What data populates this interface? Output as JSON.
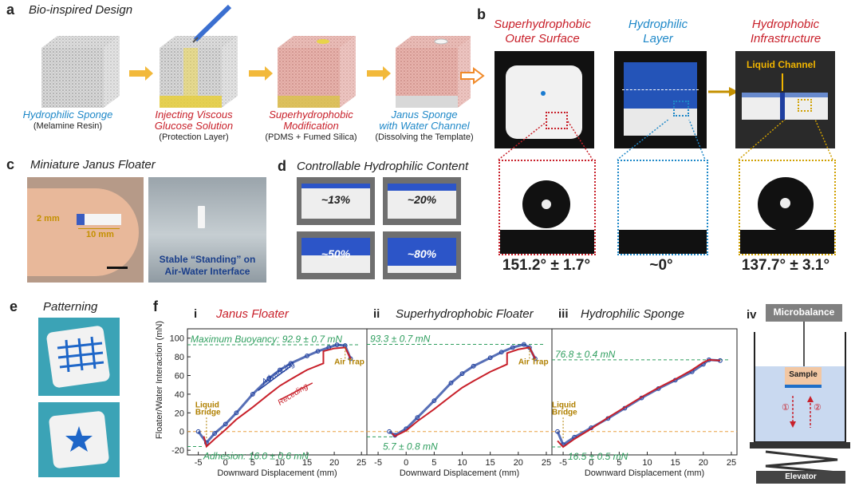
{
  "panel_a": {
    "label": "a",
    "title": "Bio-inspired Design",
    "steps": [
      {
        "title": "Hydrophilic Sponge",
        "sub": "(Melamine Resin)",
        "color": "#1e88c8"
      },
      {
        "title": "Injecting Viscous Glucose Solution",
        "sub": "(Protection Layer)",
        "color": "#c8202a"
      },
      {
        "title": "Superhydrophobic Modification",
        "sub": "(PDMS + Fumed Silica)",
        "color": "#c8202a"
      },
      {
        "title": "Janus Sponge with Water Channel",
        "sub": "(Dissolving the Template)",
        "color": "#1e88c8"
      }
    ],
    "step_titles_split": [
      [
        "Hydrophilic Sponge"
      ],
      [
        "Injecting Viscous",
        "Glucose Solution"
      ],
      [
        "Superhydrophobic",
        "Modification"
      ],
      [
        "Janus Sponge",
        "with Water Channel"
      ]
    ]
  },
  "panel_b": {
    "label": "b",
    "columns": [
      {
        "title1": "Superhydrophobic",
        "title2": "Outer Surface",
        "color": "#c8202a",
        "angle": "151.2° ± 1.7°"
      },
      {
        "title1": "Hydrophilic",
        "title2": "Layer",
        "color": "#1e88c8",
        "angle": "~0°"
      },
      {
        "title1": "Hydrophobic",
        "title2": "Infrastructure",
        "color": "#c8202a",
        "angle": "137.7° ± 3.1°"
      }
    ],
    "channel_label": "Liquid Channel"
  },
  "panel_c": {
    "label": "c",
    "title": "Miniature Janus Floater",
    "dim_height": "2 mm",
    "dim_length": "10 mm",
    "caption_line1": "Stable “Standing” on",
    "caption_line2": "Air-Water Interface"
  },
  "panel_d": {
    "label": "d",
    "title": "Controllable Hydrophilic Content",
    "samples": [
      "~13%",
      "~20%",
      "~50%",
      "~80%"
    ],
    "blue_fraction": [
      0.13,
      0.2,
      0.5,
      0.8
    ]
  },
  "panel_e": {
    "label": "e",
    "title": "Patterning"
  },
  "panel_f": {
    "label": "f",
    "ylabel": "Floater/Water Interaction (mN)",
    "xlabel": "Downward Displacement (mm)",
    "yticks": [
      "100",
      "80",
      "60",
      "40",
      "20",
      "0",
      "-20"
    ],
    "xticks": [
      "-5",
      "0",
      "5",
      "10",
      "15",
      "20",
      "25"
    ],
    "subplots": [
      {
        "roman": "i",
        "title": "Janus Floater",
        "title_color": "#c8202a",
        "max_label": "Maximum Buoyancy: 92.9 ± 0.7 mN",
        "min_label": "Adhesion: 16.0 ± 0.6 mN",
        "advancing": "Advancing",
        "receding": "Receding",
        "air_trap": "Air Trap",
        "liquid_bridge_1": "Liquid",
        "liquid_bridge_2": "Bridge"
      },
      {
        "roman": "ii",
        "title": "Superhydrophobic Floater",
        "title_color": "#222222",
        "max_label": "93.3 ± 0.7 mN",
        "min_label": "5.7 ± 0.8 mN",
        "air_trap": "Air Trap"
      },
      {
        "roman": "iii",
        "title": "Hydrophilic Sponge",
        "title_color": "#222222",
        "max_label": "76.8 ± 0.4 mN",
        "min_label": "16.5 ± 0.5 mN",
        "liquid_bridge_1": "Liquid",
        "liquid_bridge_2": "Bridge"
      }
    ],
    "apparatus": {
      "roman": "iv",
      "top": "Microbalance",
      "sample": "Sample",
      "bottom": "Elevator",
      "step1": "①",
      "step2": "②"
    }
  },
  "chart_data": [
    {
      "type": "line",
      "title": "Janus Floater",
      "xlabel": "Downward Displacement (mm)",
      "ylabel": "Floater/Water Interaction (mN)",
      "xlim": [
        -7,
        26
      ],
      "ylim": [
        -25,
        110
      ],
      "series": [
        {
          "name": "Advancing",
          "color": "#1f3f9e",
          "x": [
            -5,
            -3.5,
            -2,
            0,
            2,
            5,
            8,
            10,
            12,
            15,
            17,
            19,
            20.5,
            22,
            23
          ],
          "y": [
            0,
            -12,
            -2,
            8,
            20,
            40,
            57,
            66,
            73,
            81,
            86,
            90,
            92.9,
            92,
            78
          ]
        },
        {
          "name": "Receding",
          "color": "#c8202a",
          "x": [
            23,
            22,
            20,
            18,
            18,
            15,
            12,
            10,
            8,
            5,
            2,
            0,
            -2,
            -3.5,
            -4
          ],
          "y": [
            78,
            90,
            89,
            86,
            73,
            66,
            56,
            49,
            40,
            26,
            13,
            2,
            -8,
            -16,
            -5
          ]
        }
      ],
      "guides": {
        "max": 92.9,
        "min": -16.0
      }
    },
    {
      "type": "line",
      "title": "Superhydrophobic Floater",
      "xlabel": "Downward Displacement (mm)",
      "xlim": [
        -7,
        26
      ],
      "ylim": [
        -25,
        110
      ],
      "series": [
        {
          "name": "Advancing",
          "color": "#1f3f9e",
          "x": [
            -3,
            -2,
            0,
            2,
            5,
            8,
            10,
            12,
            15,
            17,
            19,
            21,
            22,
            23
          ],
          "y": [
            0,
            -4,
            3,
            15,
            33,
            52,
            62,
            70,
            79,
            85,
            90,
            93.3,
            90,
            78
          ]
        },
        {
          "name": "Receding",
          "color": "#c8202a",
          "x": [
            23,
            22,
            20,
            18,
            18,
            15,
            12,
            10,
            8,
            5,
            2,
            0,
            -2,
            -2.5
          ],
          "y": [
            78,
            90,
            88,
            84,
            72,
            64,
            54,
            47,
            38,
            24,
            11,
            1,
            -5,
            -2
          ]
        }
      ],
      "guides": {
        "max": 93.3,
        "min": -5.7
      }
    },
    {
      "type": "line",
      "title": "Hydrophilic Sponge",
      "xlabel": "Downward Displacement (mm)",
      "xlim": [
        -7,
        26
      ],
      "ylim": [
        -25,
        110
      ],
      "series": [
        {
          "name": "Advancing",
          "color": "#1f3f9e",
          "x": [
            -6,
            -5,
            -3,
            0,
            3,
            6,
            9,
            12,
            15,
            18,
            20,
            21,
            23
          ],
          "y": [
            0,
            -14,
            -6,
            4,
            14,
            25,
            36,
            46,
            55,
            64,
            72,
            76.8,
            76
          ]
        },
        {
          "name": "Receding",
          "color": "#c8202a",
          "x": [
            23,
            21,
            20,
            18,
            15,
            12,
            9,
            6,
            3,
            0,
            -3,
            -5,
            -6
          ],
          "y": [
            76,
            76.8,
            74,
            66,
            56,
            47,
            37,
            26,
            15,
            3,
            -8,
            -16.5,
            -10
          ]
        }
      ],
      "guides": {
        "max": 76.8,
        "min": -16.5
      }
    }
  ]
}
